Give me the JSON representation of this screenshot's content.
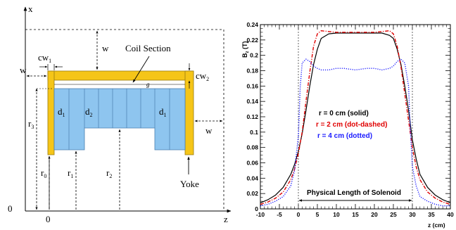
{
  "left_diagram": {
    "axis_x_label": "x",
    "axis_z_label": "z",
    "origin_label": "0",
    "x_zero_label": "0",
    "w_top": "w",
    "w_left": "w",
    "w_right": "w",
    "cw1_main": "cw",
    "cw1_sub": "1",
    "cw2_main": "cw",
    "cw2_sub": "2",
    "coil_section_label": "Coil Section",
    "gap_label": "g",
    "d1_left_main": "d",
    "d1_left_sub": "1",
    "d2_main": "d",
    "d2_sub": "2",
    "d1_right_main": "d",
    "d1_right_sub": "1",
    "r3_main": "r",
    "r3_sub": "3",
    "r0_main": "r",
    "r0_sub": "0",
    "r1_main": "r",
    "r1_sub": "1",
    "r2_main": "r",
    "r2_sub": "2",
    "yoke_label": "Yoke",
    "colors": {
      "yoke": "#f5c518",
      "yoke_edge": "#9a7a10",
      "coil": "#8ec5ef",
      "coil_edge": "#4a7fb0"
    }
  },
  "chart_data": {
    "type": "line",
    "ylabel_main": "B",
    "ylabel_sub": "z",
    "ylabel_unit": "(T)",
    "xlabel": "z (cm)",
    "xlim": [
      -10,
      40
    ],
    "ylim": [
      0,
      0.24
    ],
    "x_ticks": [
      "-10",
      "-5",
      "0",
      "5",
      "10",
      "15",
      "20",
      "25",
      "30",
      "35",
      "40"
    ],
    "y_ticks": [
      "0",
      "0.02",
      "0.04",
      "0.06",
      "0.08",
      "0.1",
      "0.12",
      "0.14",
      "0.16",
      "0.18",
      "0.2",
      "0.22",
      "0.24"
    ],
    "legend": [
      {
        "text": "r = 0 cm (solid)",
        "color": "#000000"
      },
      {
        "text": "r = 2 cm (dot-dashed)",
        "color": "#e00000"
      },
      {
        "text": "r = 4 cm (dotted)",
        "color": "#1a1aff"
      }
    ],
    "annotation": "Physical Length of Solenoid",
    "solenoid_edges": [
      0,
      30
    ],
    "series": [
      {
        "color": "#000000",
        "style": "solid",
        "x": [
          -10,
          -8,
          -6,
          -4,
          -2,
          -1,
          0,
          1,
          2,
          3,
          4,
          5,
          6,
          8,
          10,
          15,
          20,
          22,
          24,
          25,
          26,
          27,
          28,
          29,
          30,
          31,
          32,
          34,
          36,
          38,
          40
        ],
        "y": [
          0.008,
          0.012,
          0.018,
          0.028,
          0.045,
          0.058,
          0.075,
          0.098,
          0.128,
          0.16,
          0.188,
          0.208,
          0.222,
          0.228,
          0.229,
          0.229,
          0.229,
          0.229,
          0.226,
          0.222,
          0.208,
          0.188,
          0.16,
          0.128,
          0.09,
          0.065,
          0.045,
          0.028,
          0.018,
          0.012,
          0.008
        ]
      },
      {
        "color": "#e00000",
        "style": "dashdot",
        "x": [
          -10,
          -8,
          -6,
          -4,
          -2,
          -1,
          0,
          1,
          2,
          3,
          4,
          5,
          6,
          8,
          10,
          15,
          20,
          22,
          24,
          25,
          26,
          27,
          28,
          29,
          30,
          31,
          32,
          34,
          36,
          38,
          40
        ],
        "y": [
          0.006,
          0.009,
          0.014,
          0.022,
          0.038,
          0.052,
          0.072,
          0.1,
          0.14,
          0.178,
          0.212,
          0.228,
          0.232,
          0.231,
          0.23,
          0.23,
          0.23,
          0.231,
          0.232,
          0.228,
          0.212,
          0.185,
          0.15,
          0.115,
          0.08,
          0.055,
          0.038,
          0.022,
          0.014,
          0.009,
          0.006
        ]
      },
      {
        "color": "#1a1aff",
        "style": "dotted",
        "x": [
          -10,
          -8,
          -6,
          -4,
          -2,
          -1,
          0,
          0.5,
          1,
          2,
          3,
          4,
          5,
          6,
          8,
          10,
          12,
          15,
          18,
          20,
          22,
          24,
          25,
          26,
          27,
          28,
          29,
          29.5,
          30,
          31,
          32,
          34,
          36,
          38,
          40
        ],
        "y": [
          0.004,
          0.006,
          0.01,
          0.016,
          0.03,
          0.05,
          0.095,
          0.16,
          0.19,
          0.195,
          0.192,
          0.186,
          0.183,
          0.181,
          0.181,
          0.183,
          0.183,
          0.181,
          0.183,
          0.183,
          0.181,
          0.183,
          0.186,
          0.192,
          0.195,
          0.19,
          0.16,
          0.1,
          0.055,
          0.03,
          0.016,
          0.01,
          0.006,
          0.004,
          0.004
        ]
      }
    ]
  }
}
